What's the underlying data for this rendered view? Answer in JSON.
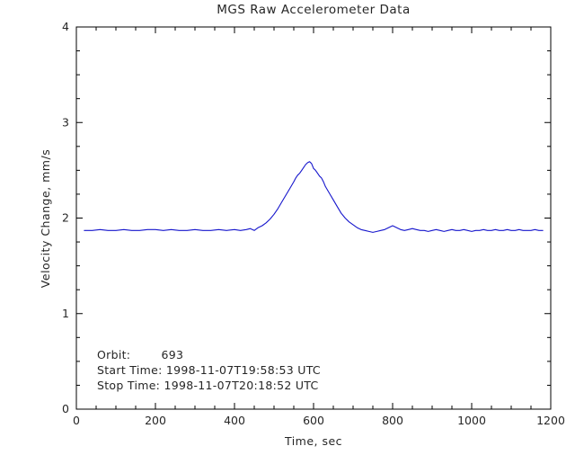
{
  "title": "MGS Raw Accelerometer Data",
  "chart_data": {
    "type": "line",
    "title": "MGS Raw Accelerometer Data",
    "xlabel": "Time, sec",
    "ylabel": "Velocity Change, mm/s",
    "xlim": [
      0,
      1200
    ],
    "ylim": [
      0,
      4
    ],
    "x_ticks": [
      0,
      200,
      400,
      600,
      800,
      1000,
      1200
    ],
    "y_ticks": [
      0,
      1,
      2,
      3,
      4
    ],
    "x_minor_step": 50,
    "y_minor_step": 0.25,
    "grid": false,
    "legend": "none",
    "line_color": "#1515cc",
    "axis_color": "#000000",
    "series": [
      {
        "name": "velocity-change",
        "points": [
          [
            20,
            1.87
          ],
          [
            40,
            1.87
          ],
          [
            60,
            1.88
          ],
          [
            80,
            1.87
          ],
          [
            100,
            1.87
          ],
          [
            120,
            1.88
          ],
          [
            140,
            1.87
          ],
          [
            160,
            1.87
          ],
          [
            180,
            1.88
          ],
          [
            200,
            1.88
          ],
          [
            220,
            1.87
          ],
          [
            240,
            1.88
          ],
          [
            260,
            1.87
          ],
          [
            280,
            1.87
          ],
          [
            300,
            1.88
          ],
          [
            320,
            1.87
          ],
          [
            340,
            1.87
          ],
          [
            360,
            1.88
          ],
          [
            380,
            1.87
          ],
          [
            400,
            1.88
          ],
          [
            415,
            1.87
          ],
          [
            430,
            1.88
          ],
          [
            440,
            1.89
          ],
          [
            450,
            1.87
          ],
          [
            460,
            1.9
          ],
          [
            470,
            1.92
          ],
          [
            480,
            1.95
          ],
          [
            490,
            1.99
          ],
          [
            500,
            2.04
          ],
          [
            510,
            2.1
          ],
          [
            520,
            2.17
          ],
          [
            530,
            2.24
          ],
          [
            540,
            2.31
          ],
          [
            550,
            2.38
          ],
          [
            555,
            2.42
          ],
          [
            560,
            2.45
          ],
          [
            565,
            2.47
          ],
          [
            570,
            2.5
          ],
          [
            575,
            2.53
          ],
          [
            580,
            2.56
          ],
          [
            585,
            2.58
          ],
          [
            590,
            2.59
          ],
          [
            595,
            2.57
          ],
          [
            600,
            2.52
          ],
          [
            605,
            2.5
          ],
          [
            610,
            2.47
          ],
          [
            615,
            2.44
          ],
          [
            620,
            2.42
          ],
          [
            625,
            2.38
          ],
          [
            630,
            2.33
          ],
          [
            640,
            2.26
          ],
          [
            650,
            2.19
          ],
          [
            660,
            2.12
          ],
          [
            670,
            2.05
          ],
          [
            680,
            2.0
          ],
          [
            690,
            1.96
          ],
          [
            700,
            1.93
          ],
          [
            710,
            1.9
          ],
          [
            720,
            1.88
          ],
          [
            730,
            1.87
          ],
          [
            740,
            1.86
          ],
          [
            750,
            1.85
          ],
          [
            760,
            1.86
          ],
          [
            770,
            1.87
          ],
          [
            780,
            1.88
          ],
          [
            790,
            1.9
          ],
          [
            800,
            1.92
          ],
          [
            810,
            1.9
          ],
          [
            820,
            1.88
          ],
          [
            830,
            1.87
          ],
          [
            840,
            1.88
          ],
          [
            850,
            1.89
          ],
          [
            860,
            1.88
          ],
          [
            870,
            1.87
          ],
          [
            880,
            1.87
          ],
          [
            890,
            1.86
          ],
          [
            900,
            1.87
          ],
          [
            910,
            1.88
          ],
          [
            920,
            1.87
          ],
          [
            930,
            1.86
          ],
          [
            940,
            1.87
          ],
          [
            950,
            1.88
          ],
          [
            960,
            1.87
          ],
          [
            970,
            1.87
          ],
          [
            980,
            1.88
          ],
          [
            990,
            1.87
          ],
          [
            1000,
            1.86
          ],
          [
            1010,
            1.87
          ],
          [
            1020,
            1.87
          ],
          [
            1030,
            1.88
          ],
          [
            1040,
            1.87
          ],
          [
            1050,
            1.87
          ],
          [
            1060,
            1.88
          ],
          [
            1070,
            1.87
          ],
          [
            1080,
            1.87
          ],
          [
            1090,
            1.88
          ],
          [
            1100,
            1.87
          ],
          [
            1110,
            1.87
          ],
          [
            1120,
            1.88
          ],
          [
            1130,
            1.87
          ],
          [
            1140,
            1.87
          ],
          [
            1150,
            1.87
          ],
          [
            1160,
            1.88
          ],
          [
            1170,
            1.87
          ],
          [
            1180,
            1.87
          ]
        ]
      }
    ]
  },
  "annotations": {
    "orbit": "Orbit:        693",
    "start": "Start Time: 1998-11-07T19:58:53 UTC",
    "stop": "Stop Time: 1998-11-07T20:18:52 UTC"
  }
}
